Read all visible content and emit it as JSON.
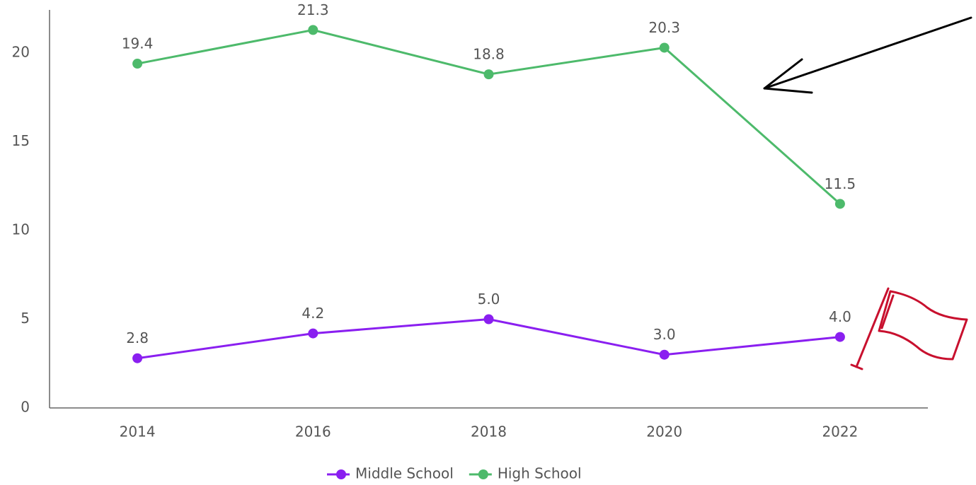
{
  "chart_data": {
    "type": "line",
    "categories": [
      "2014",
      "2016",
      "2018",
      "2020",
      "2022"
    ],
    "series": [
      {
        "name": "Middle School",
        "color": "#8a1ff0",
        "values": [
          2.8,
          4.2,
          5.0,
          3.0,
          4.0
        ],
        "value_labels": [
          "2.8",
          "4.2",
          "5.0",
          "3.0",
          "4.0"
        ]
      },
      {
        "name": "High School",
        "color": "#4dba6b",
        "values": [
          19.4,
          21.3,
          18.8,
          20.3,
          11.5
        ],
        "value_labels": [
          "19.4",
          "21.3",
          "18.8",
          "20.3",
          "11.5"
        ]
      }
    ],
    "ylim": [
      0,
      22.4
    ],
    "yticks": [
      0,
      5,
      10,
      15,
      20
    ],
    "grid": false,
    "legend": "bottom"
  }
}
